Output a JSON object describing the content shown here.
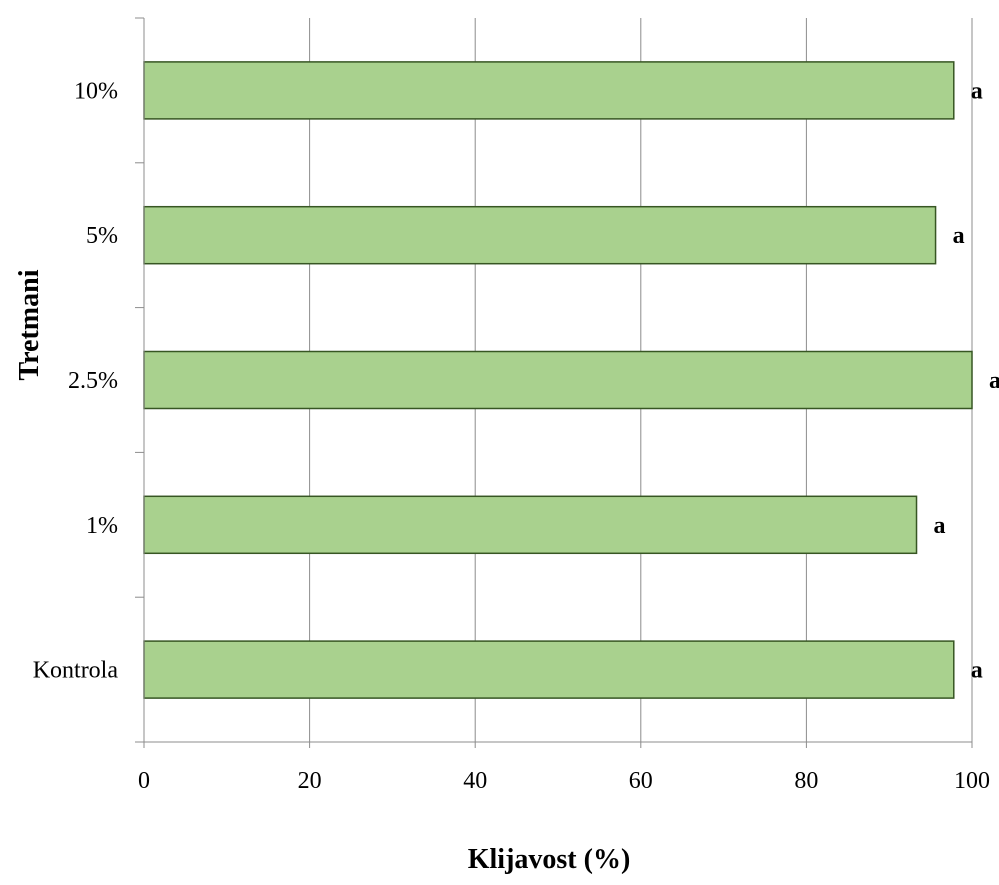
{
  "chart_data": {
    "type": "bar",
    "orientation": "horizontal",
    "categories": [
      "Kontrola",
      "1%",
      "2.5%",
      "5%",
      "10%"
    ],
    "values": [
      97.8,
      93.3,
      100,
      95.6,
      97.8
    ],
    "significance_labels": [
      "a",
      "a",
      "a",
      "a",
      "a"
    ],
    "xlabel": "Klijavost (%)",
    "ylabel": "Tretmani",
    "xlim": [
      0,
      100
    ],
    "xticks": [
      0,
      20,
      40,
      60,
      80,
      100
    ],
    "grid": "vertical",
    "legend": "none",
    "colors": {
      "bar_fill": "#a9d18e",
      "bar_stroke": "#375623",
      "grid": "#8c8c8c",
      "axis": "#8c8c8c"
    }
  }
}
